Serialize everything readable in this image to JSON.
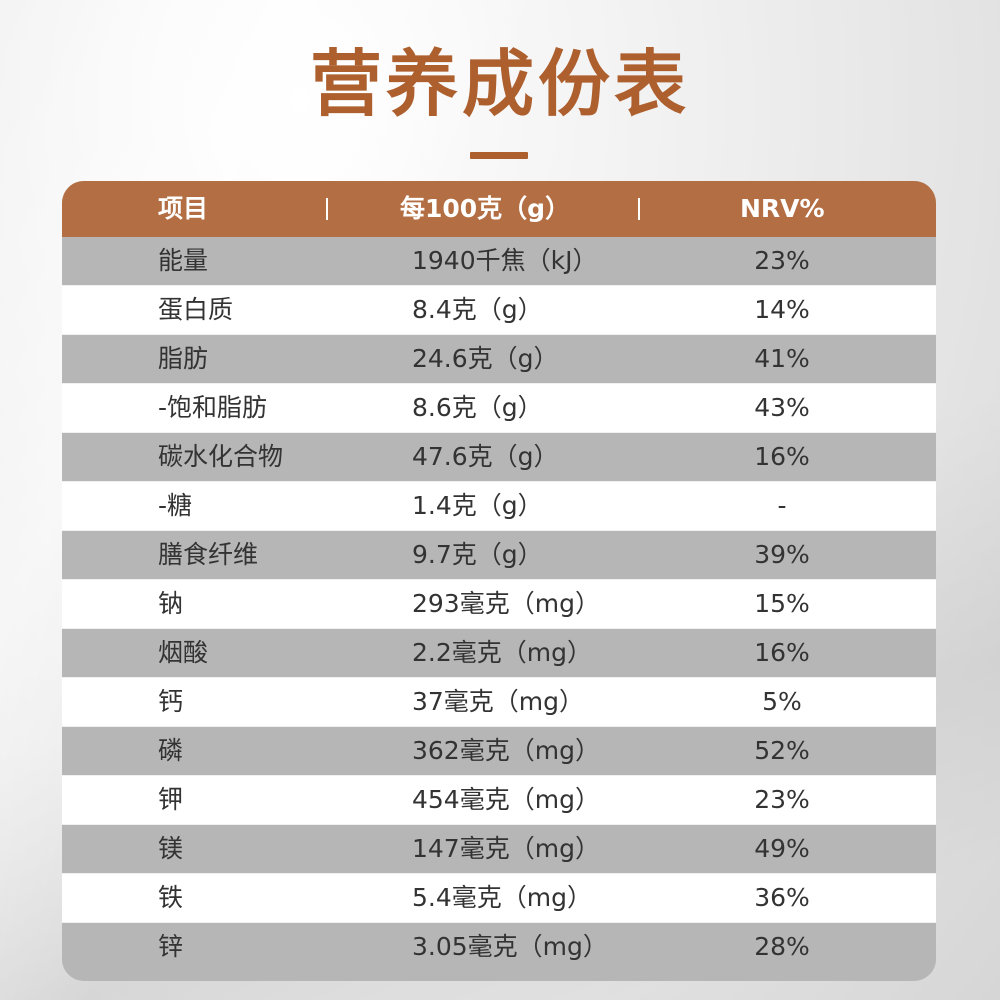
{
  "title": "营养成份表",
  "table": {
    "headers": {
      "item": "项目",
      "amount": "每100克（g）",
      "nrv": "NRV%"
    },
    "rows": [
      {
        "item": "能量",
        "amount": "1940千焦（kJ）",
        "nrv": "23%"
      },
      {
        "item": "蛋白质",
        "amount": "8.4克（g）",
        "nrv": "14%"
      },
      {
        "item": "脂肪",
        "amount": "24.6克（g）",
        "nrv": "41%"
      },
      {
        "item": "-饱和脂肪",
        "amount": "8.6克（g）",
        "nrv": "43%"
      },
      {
        "item": "碳水化合物",
        "amount": "47.6克（g）",
        "nrv": "16%"
      },
      {
        "item": "-糖",
        "amount": "1.4克（g）",
        "nrv": "-"
      },
      {
        "item": "膳食纤维",
        "amount": "9.7克（g）",
        "nrv": "39%"
      },
      {
        "item": "钠",
        "amount": "293毫克（mg）",
        "nrv": "15%"
      },
      {
        "item": "烟酸",
        "amount": "2.2毫克（mg）",
        "nrv": "16%"
      },
      {
        "item": "钙",
        "amount": "37毫克（mg）",
        "nrv": "5%"
      },
      {
        "item": "磷",
        "amount": "362毫克（mg）",
        "nrv": "52%"
      },
      {
        "item": "钾",
        "amount": "454毫克（mg）",
        "nrv": "23%"
      },
      {
        "item": "镁",
        "amount": "147毫克（mg）",
        "nrv": "49%"
      },
      {
        "item": "铁",
        "amount": "5.4毫克（mg）",
        "nrv": "36%"
      },
      {
        "item": "锌",
        "amount": "3.05毫克（mg）",
        "nrv": "28%"
      }
    ]
  },
  "colors": {
    "accent": "#ad5f2e",
    "header_bg": "#b36f43",
    "row_gray": "#b6b6b6",
    "row_white": "#ffffff",
    "text": "#333333"
  }
}
